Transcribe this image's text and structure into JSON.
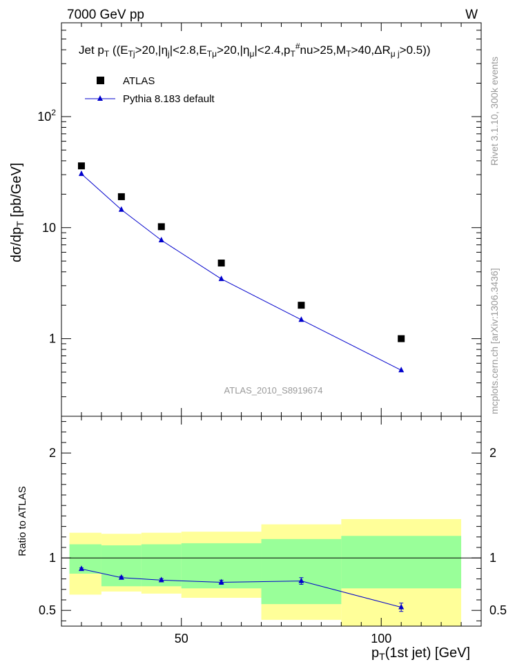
{
  "header": {
    "left": "7000 GeV pp",
    "right": "W"
  },
  "side_labels": {
    "upper": "Rivet 3.1.10,  300k events",
    "lower": "mcplots.cern.ch [arXiv:1306.3436]"
  },
  "watermark": "ATLAS_2010_S8919674",
  "colors": {
    "data": "#000000",
    "mc": "#0000cc",
    "band_inner": "#99ff99",
    "band_outer": "#ffff99",
    "watermark": "#999999"
  },
  "chart_data": [
    {
      "type": "scatter",
      "panel": "main",
      "title_parts": [
        [
          "Jet p",
          ""
        ],
        [
          "T",
          "sub"
        ],
        [
          "  ((E",
          ""
        ],
        [
          "Tj",
          "sub"
        ],
        [
          ">20,|η",
          ""
        ],
        [
          "j",
          "sub"
        ],
        [
          "|<2.8,E",
          ""
        ],
        [
          "Tμ",
          "sub"
        ],
        [
          ">20,|η",
          ""
        ],
        [
          "μ",
          "sub"
        ],
        [
          "|<2.4,p",
          ""
        ],
        [
          "T",
          "sub"
        ],
        [
          "#",
          "sup"
        ],
        [
          "nu>25,M",
          ""
        ],
        [
          "T",
          "sub"
        ],
        [
          ">40,ΔR",
          ""
        ],
        [
          "μ j",
          "sub"
        ],
        [
          ">0.5))",
          ""
        ]
      ],
      "ylabel_parts": [
        [
          "dσ/dp",
          ""
        ],
        [
          "T",
          "sub"
        ],
        [
          " [pb/GeV]",
          ""
        ]
      ],
      "yscale": "log",
      "ylim": [
        0.2,
        700
      ],
      "xlim": [
        20,
        125
      ],
      "yticks": [
        {
          "value": 1,
          "label": "1"
        },
        {
          "value": 10,
          "label": "10"
        },
        {
          "value": 100,
          "label": "10",
          "sup": "2"
        }
      ],
      "legend": {
        "position": "top-left",
        "entries": [
          "ATLAS",
          "Pythia 8.183 default"
        ]
      },
      "series": [
        {
          "name": "ATLAS",
          "style": "square",
          "x": [
            25,
            35,
            45,
            60,
            80,
            105
          ],
          "y": [
            36,
            19,
            10.2,
            4.8,
            2.0,
            1.0
          ]
        },
        {
          "name": "Pythia 8.183 default",
          "style": "line-triangle",
          "x": [
            25,
            35,
            45,
            60,
            80,
            105
          ],
          "y": [
            30.5,
            14.5,
            7.7,
            3.45,
            1.48,
            0.52
          ]
        }
      ]
    },
    {
      "type": "line",
      "panel": "ratio",
      "ylabel": "Ratio to ATLAS",
      "xlabel_parts": [
        [
          "p",
          ""
        ],
        [
          "T",
          "sub"
        ],
        [
          "(1st jet) [GeV]",
          ""
        ]
      ],
      "xlim": [
        20,
        125
      ],
      "ylim": [
        0.35,
        2.35
      ],
      "xticks": [
        {
          "value": 50,
          "label": "50"
        },
        {
          "value": 100,
          "label": "100"
        }
      ],
      "yticks": [
        {
          "value": 0.5,
          "label": "0.5"
        },
        {
          "value": 1,
          "label": "1"
        },
        {
          "value": 2,
          "label": "2"
        }
      ],
      "reference_line": 1,
      "bands": [
        {
          "x0": 22,
          "x1": 30,
          "inner": [
            0.85,
            1.13
          ],
          "outer": [
            0.65,
            1.24
          ]
        },
        {
          "x0": 30,
          "x1": 40,
          "inner": [
            0.73,
            1.12
          ],
          "outer": [
            0.68,
            1.23
          ]
        },
        {
          "x0": 40,
          "x1": 50,
          "inner": [
            0.73,
            1.13
          ],
          "outer": [
            0.66,
            1.24
          ]
        },
        {
          "x0": 50,
          "x1": 70,
          "inner": [
            0.71,
            1.14
          ],
          "outer": [
            0.62,
            1.25
          ]
        },
        {
          "x0": 70,
          "x1": 90,
          "inner": [
            0.56,
            1.18
          ],
          "outer": [
            0.41,
            1.32
          ]
        },
        {
          "x0": 90,
          "x1": 120,
          "inner": [
            0.71,
            1.21
          ],
          "outer": [
            0.35,
            1.37
          ]
        }
      ],
      "series": [
        {
          "name": "Pythia 8.183 default",
          "x": [
            25,
            35,
            45,
            60,
            80,
            105
          ],
          "y": [
            0.895,
            0.812,
            0.788,
            0.768,
            0.78,
            0.53
          ],
          "err": [
            0.01,
            0.012,
            0.015,
            0.02,
            0.032,
            0.04
          ]
        }
      ]
    }
  ]
}
